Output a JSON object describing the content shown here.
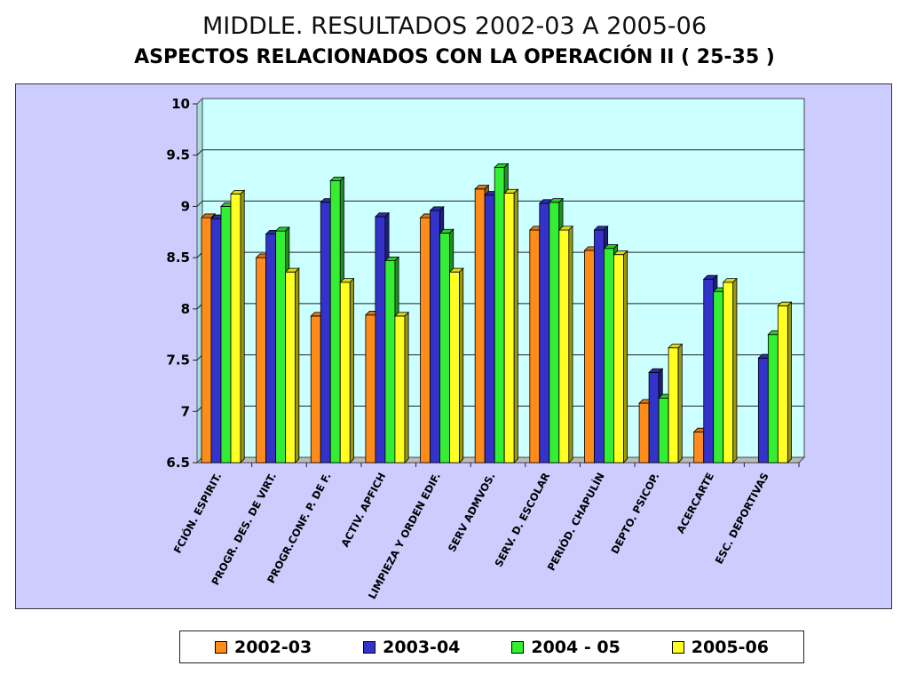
{
  "header": {
    "title": "MIDDLE. RESULTADOS 2002-03 A 2005-06",
    "subtitle": "ASPECTOS RELACIONADOS CON LA OPERACIÓN  II ( 25-35 )"
  },
  "colors": {
    "frame_bg": "#ccccff",
    "plot_bg": "#ccffff",
    "series": [
      "#ff8c1a",
      "#3333cc",
      "#33ee33",
      "#ffff22"
    ]
  },
  "chart_data": {
    "type": "bar",
    "title": "ASPECTOS RELACIONADOS CON LA OPERACIÓN  II ( 25-35 )",
    "xlabel": "",
    "ylabel": "",
    "ylim": [
      6.5,
      10
    ],
    "yticks": [
      "6.5",
      "7",
      "7.5",
      "8",
      "8.5",
      "9",
      "9.5",
      "10"
    ],
    "grid": true,
    "legend_position": "bottom",
    "categories": [
      "FCIÓN. ESPIRIT.",
      "PROGR. DES. DE VIRT.",
      "PROGR.CONF. P. DE F.",
      "ACTIV. APFICH",
      "LIMPIEZA Y ORDEN EDIF.",
      "SERV ADMVOS.",
      "SERV. D. ESCOLAR",
      "PERIÓD. CHAPULÍN",
      "DEPTO. PSICOP.",
      "ACERCARTE",
      "ESC. DEPORTIVAS"
    ],
    "series": [
      {
        "name": "2002-03",
        "values": [
          8.89,
          8.5,
          7.93,
          7.94,
          8.89,
          9.17,
          8.77,
          8.57,
          7.08,
          6.8,
          null
        ]
      },
      {
        "name": "2003-04",
        "values": [
          8.88,
          8.73,
          9.04,
          8.9,
          8.96,
          9.11,
          9.03,
          8.77,
          7.38,
          8.29,
          7.52
        ]
      },
      {
        "name": "2004 - 05",
        "values": [
          9.0,
          8.76,
          9.25,
          8.47,
          8.74,
          9.38,
          9.04,
          8.59,
          7.13,
          8.17,
          7.75
        ]
      },
      {
        "name": "2005-06",
        "values": [
          9.12,
          8.36,
          8.26,
          7.93,
          8.36,
          9.13,
          8.77,
          8.53,
          7.62,
          8.26,
          8.03
        ]
      }
    ]
  }
}
